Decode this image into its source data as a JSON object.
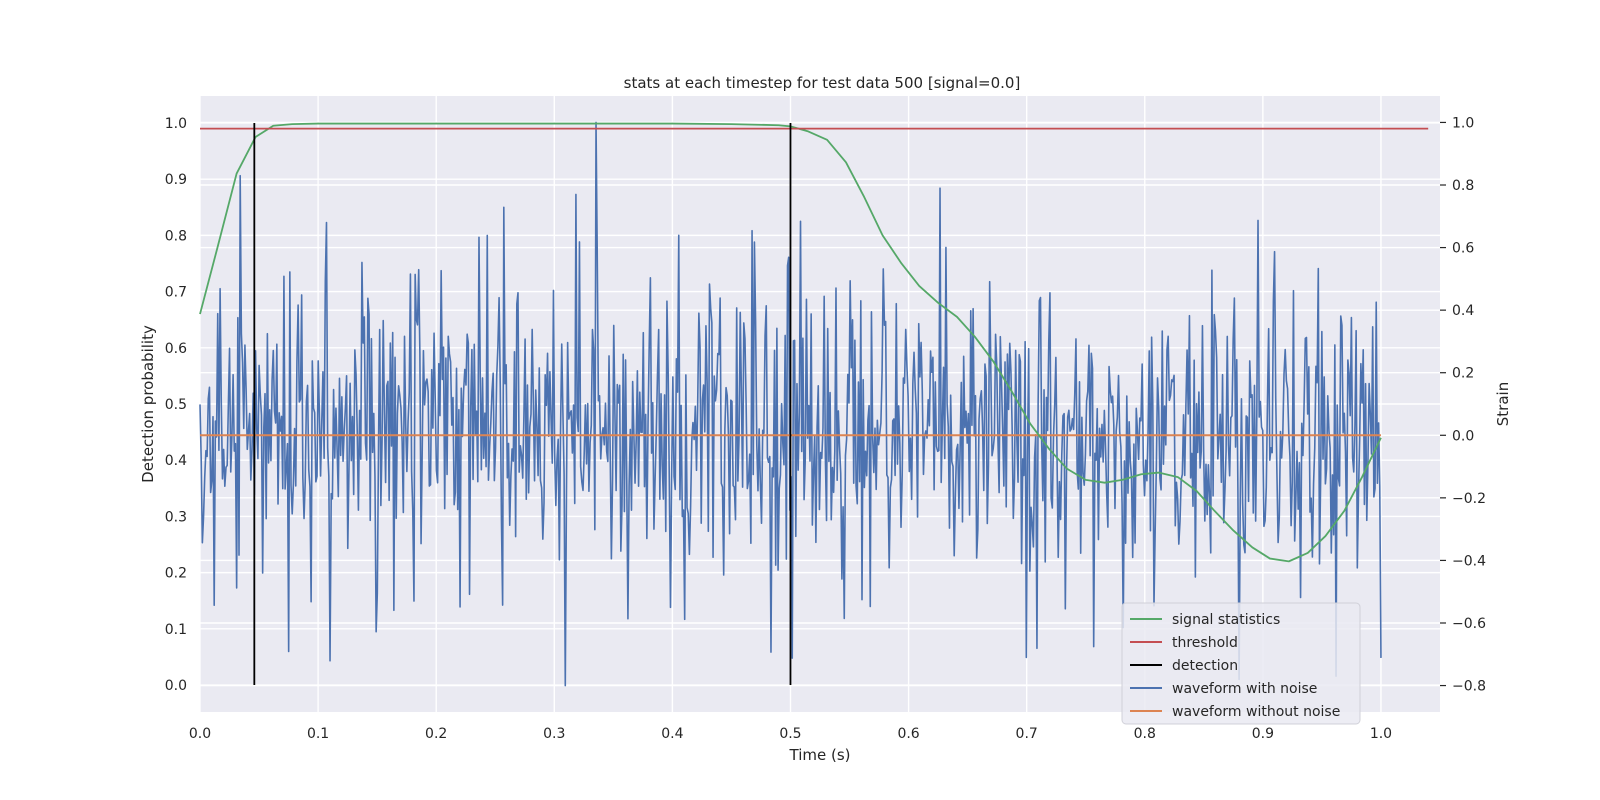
{
  "chart_data": {
    "type": "line",
    "title": "stats at each timestep for test data 500 [signal=0.0]",
    "xlabel": "Time (s)",
    "ylabel": "Detection probability",
    "y2label": "Strain",
    "xlim": [
      0.0,
      1.05
    ],
    "ylim": [
      -0.048,
      1.048
    ],
    "y2lim": [
      -0.8845,
      1.0845
    ],
    "xticks": [
      0.0,
      0.1,
      0.2,
      0.3,
      0.4,
      0.5,
      0.6,
      0.7,
      0.8,
      0.9,
      1.0
    ],
    "yticks": [
      0.0,
      0.1,
      0.2,
      0.3,
      0.4,
      0.5,
      0.6,
      0.7,
      0.8,
      0.9,
      1.0
    ],
    "y2ticks": [
      -0.8,
      -0.6,
      -0.4,
      -0.2,
      0.0,
      0.2,
      0.4,
      0.6,
      0.8,
      1.0
    ],
    "grid": true,
    "legend_position": "lower-right",
    "legend": [
      "signal statistics",
      "threshold",
      "detection",
      "waveform with noise",
      "waveform without noise"
    ],
    "colors": {
      "signal_statistics": "#55a868",
      "threshold": "#c44e52",
      "detection": "#000000",
      "waveform_with_noise": "#4c72b0",
      "waveform_without_noise": "#dd8452",
      "plot_background": "#eaeaf2",
      "grid": "#ffffff"
    },
    "signal_statistics": {
      "x": [
        0.0,
        0.015,
        0.031,
        0.047,
        0.062,
        0.078,
        0.1,
        0.2,
        0.3,
        0.4,
        0.45,
        0.49,
        0.5,
        0.515,
        0.531,
        0.547,
        0.562,
        0.578,
        0.594,
        0.609,
        0.625,
        0.641,
        0.656,
        0.672,
        0.688,
        0.703,
        0.719,
        0.734,
        0.75,
        0.766,
        0.781,
        0.797,
        0.812,
        0.828,
        0.844,
        0.859,
        0.875,
        0.891,
        0.906,
        0.922,
        0.938,
        0.953,
        0.969,
        0.984,
        1.0
      ],
      "y": [
        0.66,
        0.78,
        0.91,
        0.975,
        0.995,
        0.998,
        0.999,
        0.999,
        0.999,
        0.999,
        0.998,
        0.996,
        0.994,
        0.985,
        0.97,
        0.93,
        0.87,
        0.8,
        0.75,
        0.71,
        0.68,
        0.655,
        0.62,
        0.575,
        0.52,
        0.465,
        0.42,
        0.385,
        0.365,
        0.36,
        0.365,
        0.375,
        0.378,
        0.37,
        0.345,
        0.31,
        0.275,
        0.245,
        0.225,
        0.22,
        0.235,
        0.265,
        0.31,
        0.37,
        0.44
      ]
    },
    "threshold": {
      "x": [
        0.0,
        1.04
      ],
      "y": [
        0.99,
        0.99
      ]
    },
    "detections": [
      {
        "x": 0.046,
        "y": [
          0.0,
          1.0
        ]
      },
      {
        "x": 0.5,
        "y": [
          0.0,
          1.0
        ]
      }
    ],
    "waveform_without_noise": {
      "x": [
        0.0,
        1.0
      ],
      "y": [
        0.0,
        0.0
      ]
    },
    "waveform_with_noise": {
      "n_points": 1000,
      "x_range": [
        0.0,
        1.0
      ],
      "approx_std": 0.25,
      "notable_points": [
        {
          "x": 0.335,
          "y": 1.0
        },
        {
          "x": 0.309,
          "y": -0.8
        },
        {
          "x": 0.034,
          "y": 0.83
        },
        {
          "x": 0.318,
          "y": 0.77
        },
        {
          "x": 0.107,
          "y": 0.68
        },
        {
          "x": 0.627,
          "y": 0.79
        },
        {
          "x": 0.7,
          "y": -0.71
        },
        {
          "x": 0.962,
          "y": -0.77
        },
        {
          "x": 0.995,
          "y": -0.17
        }
      ]
    }
  }
}
